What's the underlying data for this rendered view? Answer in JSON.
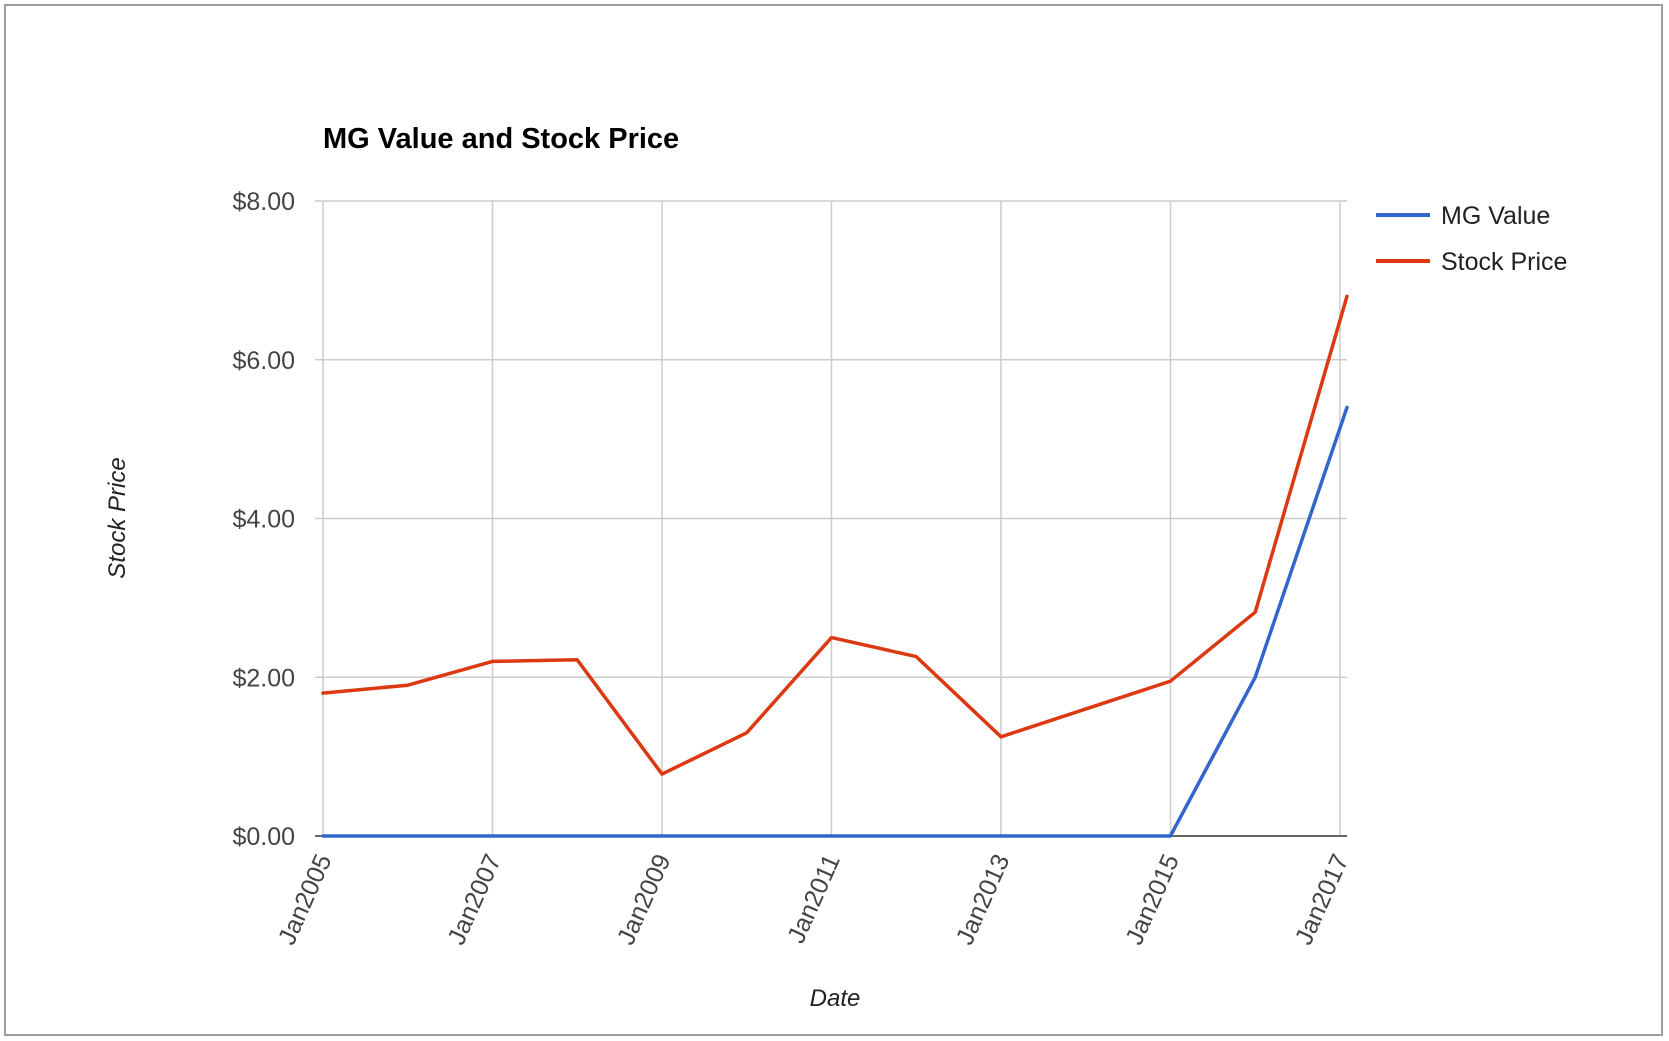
{
  "chart_data": {
    "type": "line",
    "title": "MG Value and Stock Price",
    "xlabel": "Date",
    "ylabel": "Stock Price",
    "x_tick_labels": [
      "Jan2005",
      "Jan2007",
      "Jan2009",
      "Jan2011",
      "Jan2013",
      "Jan2015",
      "Jan2017"
    ],
    "y_tick_labels": [
      "$0.00",
      "$2.00",
      "$4.00",
      "$6.00",
      "$8.00"
    ],
    "ylim": [
      0,
      8
    ],
    "xlim": [
      "2005-01",
      "2017-02"
    ],
    "grid": true,
    "legend_position": "right",
    "series": [
      {
        "name": "MG Value",
        "color": "#3366cc",
        "points": [
          {
            "date": "2005-01",
            "value": 0
          },
          {
            "date": "2015-01",
            "value": 0
          },
          {
            "date": "2016-01",
            "value": 2.0
          },
          {
            "date": "2017-02",
            "value": 5.4
          }
        ]
      },
      {
        "name": "Stock Price",
        "color": "#dc3912",
        "points": [
          {
            "date": "2005-01",
            "value": 1.8
          },
          {
            "date": "2006-01",
            "value": 1.9
          },
          {
            "date": "2007-01",
            "value": 2.2
          },
          {
            "date": "2008-01",
            "value": 2.22
          },
          {
            "date": "2009-01",
            "value": 0.78
          },
          {
            "date": "2010-01",
            "value": 1.3
          },
          {
            "date": "2011-01",
            "value": 2.5
          },
          {
            "date": "2012-01",
            "value": 2.26
          },
          {
            "date": "2013-01",
            "value": 1.25
          },
          {
            "date": "2015-01",
            "value": 1.95
          },
          {
            "date": "2016-01",
            "value": 2.82
          },
          {
            "date": "2017-02",
            "value": 6.8
          }
        ]
      }
    ]
  }
}
